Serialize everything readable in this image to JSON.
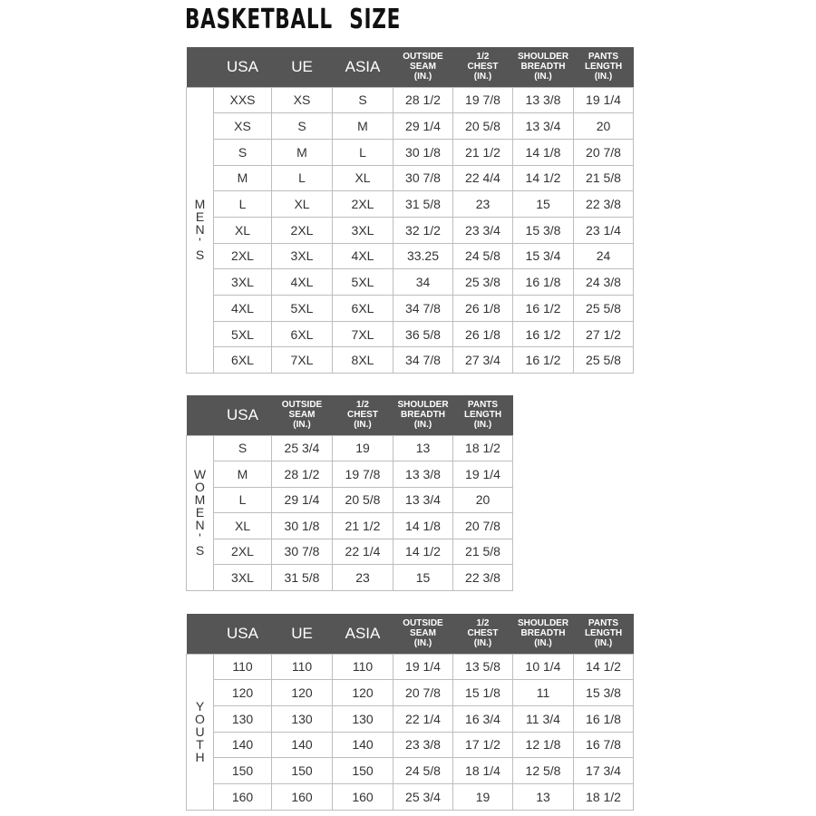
{
  "title": "BASKETBALL SIZE",
  "tables": [
    {
      "id": "mens",
      "side_label": "MEN'S",
      "side_letters": [
        "M",
        "E",
        "N'",
        "S"
      ],
      "headers": [
        "USA",
        "UE",
        "ASIA",
        "OUTSIDE\nSEAM\n(IN.)",
        "1/2\nCHEST\n(IN.)",
        "SHOULDER\nBREADTH\n(IN.)",
        "PANTS\nLENGTH\n(IN.)"
      ],
      "rows": [
        [
          "XXS",
          "XS",
          "S",
          "28 1/2",
          "19 7/8",
          "13 3/8",
          "19 1/4"
        ],
        [
          "XS",
          "S",
          "M",
          "29 1/4",
          "20 5/8",
          "13 3/4",
          "20"
        ],
        [
          "S",
          "M",
          "L",
          "30 1/8",
          "21 1/2",
          "14 1/8",
          "20 7/8"
        ],
        [
          "M",
          "L",
          "XL",
          "30 7/8",
          "22 4/4",
          "14 1/2",
          "21 5/8"
        ],
        [
          "L",
          "XL",
          "2XL",
          "31 5/8",
          "23",
          "15",
          "22 3/8"
        ],
        [
          "XL",
          "2XL",
          "3XL",
          "32 1/2",
          "23 3/4",
          "15 3/8",
          "23 1/4"
        ],
        [
          "2XL",
          "3XL",
          "4XL",
          "33.25",
          "24 5/8",
          "15 3/4",
          "24"
        ],
        [
          "3XL",
          "4XL",
          "5XL",
          "34",
          "25 3/8",
          "16 1/8",
          "24 3/8"
        ],
        [
          "4XL",
          "5XL",
          "6XL",
          "34 7/8",
          "26 1/8",
          "16 1/2",
          "25 5/8"
        ],
        [
          "5XL",
          "6XL",
          "7XL",
          "36 5/8",
          "26 1/8",
          "16 1/2",
          "27 1/2"
        ],
        [
          "6XL",
          "7XL",
          "8XL",
          "34 7/8",
          "27 3/4",
          "16 1/2",
          "25 5/8"
        ]
      ]
    },
    {
      "id": "womens",
      "side_label": "WOMEN'S",
      "side_letters": [
        "W",
        "O",
        "M",
        "E",
        "N'",
        "S"
      ],
      "headers": [
        "USA",
        "OUTSIDE\nSEAM\n(IN.)",
        "1/2\nCHEST\n(IN.)",
        "SHOULDER\nBREADTH\n(IN.)",
        "PANTS\nLENGTH\n(IN.)"
      ],
      "rows": [
        [
          "S",
          "25 3/4",
          "19",
          "13",
          "18 1/2"
        ],
        [
          "M",
          "28 1/2",
          "19 7/8",
          "13 3/8",
          "19 1/4"
        ],
        [
          "L",
          "29 1/4",
          "20 5/8",
          "13 3/4",
          "20"
        ],
        [
          "XL",
          "30 1/8",
          "21 1/2",
          "14 1/8",
          "20 7/8"
        ],
        [
          "2XL",
          "30 7/8",
          "22 1/4",
          "14 1/2",
          "21 5/8"
        ],
        [
          "3XL",
          "31 5/8",
          "23",
          "15",
          "22 3/8"
        ]
      ]
    },
    {
      "id": "youth",
      "side_label": "YOUTH",
      "side_letters": [
        "Y",
        "O",
        "U",
        "T",
        "H"
      ],
      "headers": [
        "USA",
        "UE",
        "ASIA",
        "OUTSIDE\nSEAM\n(IN.)",
        "1/2\nCHEST\n(IN.)",
        "SHOULDER\nBREADTH\n(IN.)",
        "PANTS\nLENGTH\n(IN.)"
      ],
      "rows": [
        [
          "110",
          "110",
          "110",
          "19 1/4",
          "13 5/8",
          "10 1/4",
          "14 1/2"
        ],
        [
          "120",
          "120",
          "120",
          "20 7/8",
          "15 1/8",
          "11",
          "15 3/8"
        ],
        [
          "130",
          "130",
          "130",
          "22 1/4",
          "16 3/4",
          "11 3/4",
          "16 1/8"
        ],
        [
          "140",
          "140",
          "140",
          "23 3/8",
          "17 1/2",
          "12 1/8",
          "16 7/8"
        ],
        [
          "150",
          "150",
          "150",
          "24 5/8",
          "18 1/4",
          "12 5/8",
          "17 3/4"
        ],
        [
          "160",
          "160",
          "160",
          "25 3/4",
          "19",
          "13",
          "18 1/2"
        ]
      ]
    }
  ],
  "colors": {
    "header_bg": "#555555",
    "header_text": "#ffffff",
    "grid": "#bdbdbd"
  }
}
